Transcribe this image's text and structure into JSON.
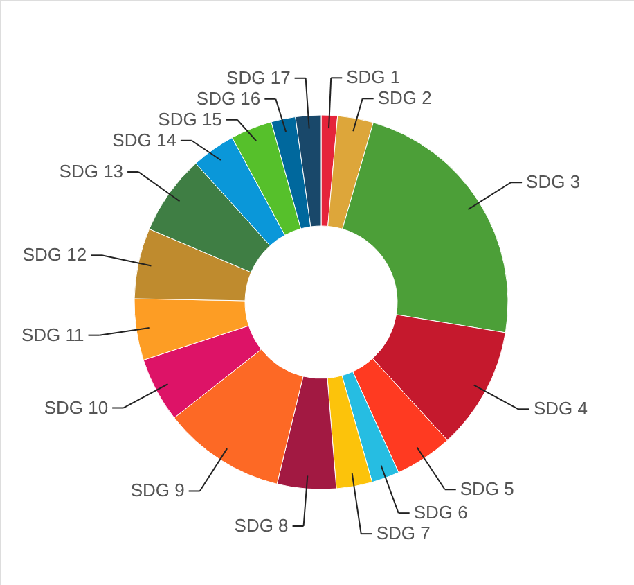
{
  "chart_data": {
    "type": "donut",
    "categories": [
      "SDG 1",
      "SDG 2",
      "SDG 3",
      "SDG 4",
      "SDG 5",
      "SDG 6",
      "SDG 7",
      "SDG 8",
      "SDG 9",
      "SDG 10",
      "SDG 11",
      "SDG 12",
      "SDG 13",
      "SDG 14",
      "SDG 15",
      "SDG 16",
      "SDG 17"
    ],
    "values": [
      1.4,
      3.1,
      23.1,
      10.6,
      5.0,
      2.4,
      3.1,
      5.1,
      10.6,
      5.6,
      5.3,
      6.1,
      6.9,
      3.8,
      3.6,
      2.1,
      2.2
    ],
    "colors": [
      "#e5243b",
      "#dda63a",
      "#4c9f38",
      "#c5192d",
      "#ff3a21",
      "#26bde2",
      "#fcc30b",
      "#a21942",
      "#fd6925",
      "#dd1367",
      "#fd9d24",
      "#bf8b2e",
      "#3f7e44",
      "#0a97d9",
      "#56c02b",
      "#00689d",
      "#19486a"
    ]
  }
}
